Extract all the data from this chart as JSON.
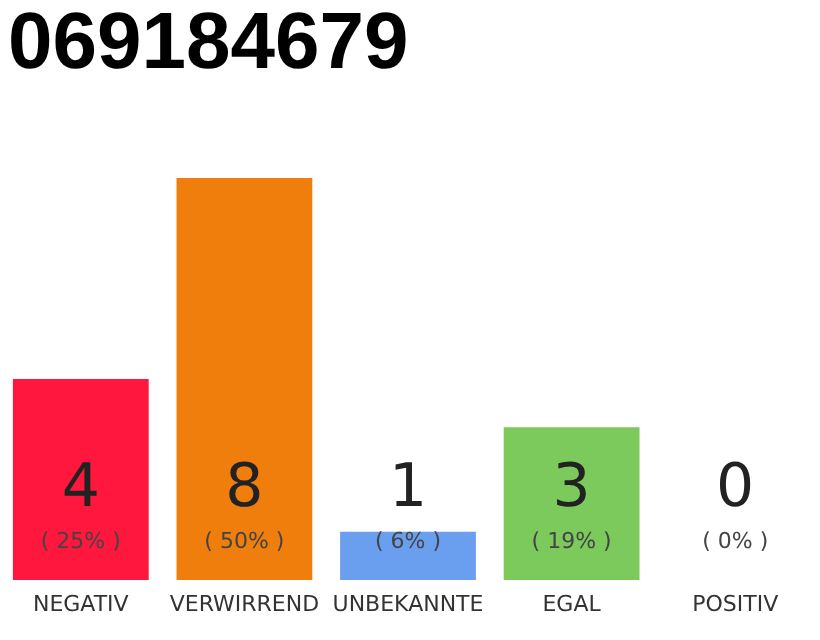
{
  "chart_data": {
    "type": "bar",
    "title": "069184679",
    "categories": [
      "NEGATIV",
      "VERWIRREND",
      "UNBEKANNTE",
      "EGAL",
      "POSITIV"
    ],
    "values": [
      25,
      50,
      6,
      19,
      0
    ],
    "colors": [
      "#ff173d",
      "#f07e0d",
      "#6a9eef",
      "#7cc95c",
      "#22aa44"
    ],
    "value_labels": [
      "( 25% )",
      "( 50% )",
      "( 6% )",
      "( 19% )",
      "( 0% )"
    ],
    "tick_labels": "x",
    "annotations": [
      "4",
      "8",
      "1",
      "3",
      "0"
    ]
  }
}
